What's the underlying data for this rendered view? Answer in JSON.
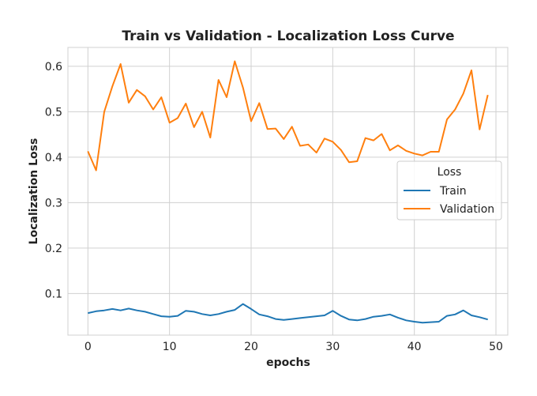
{
  "chart_data": {
    "type": "line",
    "title": "Train vs Validation - Localization Loss Curve",
    "xlabel": "epochs",
    "ylabel": "Localization Loss",
    "xlim": [
      -2.45,
      51.45
    ],
    "ylim": [
      0.0085,
      0.6415
    ],
    "xticks": [
      0,
      10,
      20,
      30,
      40,
      50
    ],
    "yticks": [
      0.1,
      0.2,
      0.3,
      0.4,
      0.5,
      0.6
    ],
    "grid": true,
    "legend": {
      "title": "Loss",
      "placement": "center-right"
    },
    "x": [
      0,
      1,
      2,
      3,
      4,
      5,
      6,
      7,
      8,
      9,
      10,
      11,
      12,
      13,
      14,
      15,
      16,
      17,
      18,
      19,
      20,
      21,
      22,
      23,
      24,
      25,
      26,
      27,
      28,
      29,
      30,
      31,
      32,
      33,
      34,
      35,
      36,
      37,
      38,
      39,
      40,
      41,
      42,
      43,
      44,
      45,
      46,
      47,
      48,
      49
    ],
    "series": [
      {
        "name": "Train",
        "color": "#1f77b4",
        "values": [
          0.057,
          0.061,
          0.063,
          0.066,
          0.063,
          0.067,
          0.063,
          0.06,
          0.055,
          0.05,
          0.049,
          0.051,
          0.062,
          0.06,
          0.055,
          0.052,
          0.055,
          0.06,
          0.064,
          0.077,
          0.066,
          0.054,
          0.05,
          0.044,
          0.042,
          0.044,
          0.046,
          0.048,
          0.05,
          0.052,
          0.062,
          0.051,
          0.043,
          0.041,
          0.044,
          0.049,
          0.051,
          0.054,
          0.047,
          0.041,
          0.038,
          0.036,
          0.037,
          0.038,
          0.051,
          0.054,
          0.063,
          0.052,
          0.048,
          0.043
        ]
      },
      {
        "name": "Validation",
        "color": "#ff7f0e",
        "values": [
          0.413,
          0.371,
          0.5,
          0.556,
          0.605,
          0.52,
          0.548,
          0.534,
          0.505,
          0.532,
          0.476,
          0.486,
          0.518,
          0.466,
          0.5,
          0.443,
          0.57,
          0.532,
          0.611,
          0.553,
          0.479,
          0.519,
          0.462,
          0.463,
          0.44,
          0.467,
          0.425,
          0.428,
          0.41,
          0.441,
          0.434,
          0.416,
          0.389,
          0.391,
          0.442,
          0.437,
          0.451,
          0.415,
          0.426,
          0.414,
          0.408,
          0.404,
          0.412,
          0.412,
          0.483,
          0.505,
          0.54,
          0.591,
          0.461,
          0.537
        ]
      }
    ]
  }
}
